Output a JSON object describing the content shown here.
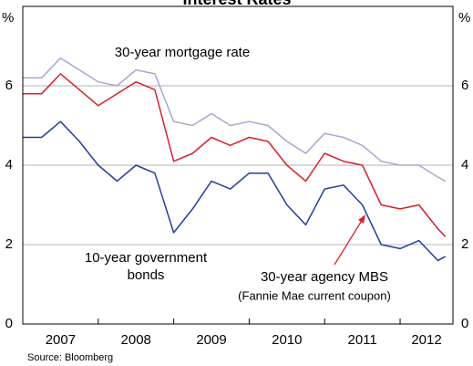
{
  "chart_data": {
    "type": "line",
    "title": "Interest Rates",
    "y_unit_left": "%",
    "y_unit_right": "%",
    "x": [
      2007.0,
      2007.25,
      2007.5,
      2007.75,
      2008.0,
      2008.25,
      2008.5,
      2008.75,
      2009.0,
      2009.25,
      2009.5,
      2009.75,
      2010.0,
      2010.25,
      2010.5,
      2010.75,
      2011.0,
      2011.25,
      2011.5,
      2011.75,
      2012.0,
      2012.25,
      2012.5,
      2012.6
    ],
    "series": [
      {
        "name": "30-year mortgage rate",
        "color": "#aaa4d2",
        "values": [
          6.2,
          6.2,
          6.7,
          6.4,
          6.1,
          6.0,
          6.4,
          6.3,
          5.1,
          5.0,
          5.3,
          5.0,
          5.1,
          5.0,
          4.6,
          4.3,
          4.8,
          4.7,
          4.5,
          4.1,
          4.0,
          4.0,
          3.7,
          3.6
        ]
      },
      {
        "name": "30-year agency MBS",
        "color": "#d8202a",
        "values": [
          5.8,
          5.8,
          6.3,
          5.9,
          5.5,
          5.8,
          6.1,
          5.9,
          4.1,
          4.3,
          4.7,
          4.5,
          4.7,
          4.6,
          4.0,
          3.6,
          4.3,
          4.1,
          4.0,
          3.0,
          2.9,
          3.0,
          2.4,
          2.2
        ]
      },
      {
        "name": "10-year government bonds",
        "color": "#213f99",
        "values": [
          4.7,
          4.7,
          5.1,
          4.6,
          4.0,
          3.6,
          4.0,
          3.8,
          2.3,
          2.9,
          3.6,
          3.4,
          3.8,
          3.8,
          3.0,
          2.5,
          3.4,
          3.5,
          3.0,
          2.0,
          1.9,
          2.1,
          1.6,
          1.7
        ]
      }
    ],
    "label_lines": {
      "mortgage": "30-year mortgage rate",
      "bonds_1": "10-year government",
      "bonds_2": "bonds",
      "mbs": "30-year agency MBS",
      "mbs_note": "(Fannie Mae current coupon)"
    },
    "xlim": [
      2007.0,
      2012.7
    ],
    "year_boundaries": [
      2008,
      2009,
      2010,
      2011,
      2012
    ],
    "xticks": [
      {
        "value": 2007.5,
        "label": "2007"
      },
      {
        "value": 2008.5,
        "label": "2008"
      },
      {
        "value": 2009.5,
        "label": "2009"
      },
      {
        "value": 2010.5,
        "label": "2010"
      },
      {
        "value": 2011.5,
        "label": "2011"
      },
      {
        "value": 2012.35,
        "label": "2012"
      }
    ],
    "ylim": [
      0,
      8
    ],
    "yticks": [
      0,
      2,
      4,
      6
    ],
    "grid": true,
    "source": "Source: Bloomberg"
  }
}
